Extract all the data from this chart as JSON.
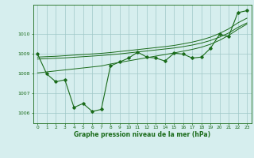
{
  "x": [
    0,
    1,
    2,
    3,
    4,
    5,
    6,
    7,
    8,
    9,
    10,
    11,
    12,
    13,
    14,
    15,
    16,
    17,
    18,
    19,
    20,
    21,
    22,
    23
  ],
  "y_main": [
    1009.0,
    1008.0,
    1007.6,
    1007.7,
    1006.3,
    1006.5,
    1006.1,
    1006.2,
    1008.4,
    1008.6,
    1008.8,
    1009.1,
    1008.85,
    1008.8,
    1008.65,
    1009.05,
    1009.0,
    1008.8,
    1008.85,
    1009.3,
    1010.0,
    1009.9,
    1011.1,
    1011.2
  ],
  "y_trend1": [
    1008.05,
    1008.1,
    1008.15,
    1008.2,
    1008.25,
    1008.3,
    1008.35,
    1008.4,
    1008.5,
    1008.58,
    1008.66,
    1008.74,
    1008.82,
    1008.9,
    1008.98,
    1009.06,
    1009.15,
    1009.24,
    1009.35,
    1009.5,
    1009.7,
    1009.95,
    1010.25,
    1010.52
  ],
  "y_trend2": [
    1008.75,
    1008.77,
    1008.79,
    1008.81,
    1008.84,
    1008.87,
    1008.9,
    1008.93,
    1008.97,
    1009.01,
    1009.06,
    1009.11,
    1009.16,
    1009.21,
    1009.26,
    1009.31,
    1009.38,
    1009.46,
    1009.56,
    1009.69,
    1009.86,
    1010.07,
    1010.35,
    1010.58
  ],
  "y_trend3": [
    1008.85,
    1008.87,
    1008.89,
    1008.92,
    1008.95,
    1008.98,
    1009.01,
    1009.04,
    1009.08,
    1009.13,
    1009.18,
    1009.23,
    1009.28,
    1009.33,
    1009.38,
    1009.44,
    1009.52,
    1009.61,
    1009.72,
    1009.86,
    1010.05,
    1010.28,
    1010.58,
    1010.82
  ],
  "line_color": "#1a6b1a",
  "bg_color": "#d6eeee",
  "grid_color": "#a0c8c8",
  "xlabel": "Graphe pression niveau de la mer (hPa)",
  "ylim": [
    1005.5,
    1011.5
  ],
  "yticks": [
    1006,
    1007,
    1008,
    1009,
    1010
  ],
  "xlim": [
    -0.5,
    23.5
  ]
}
